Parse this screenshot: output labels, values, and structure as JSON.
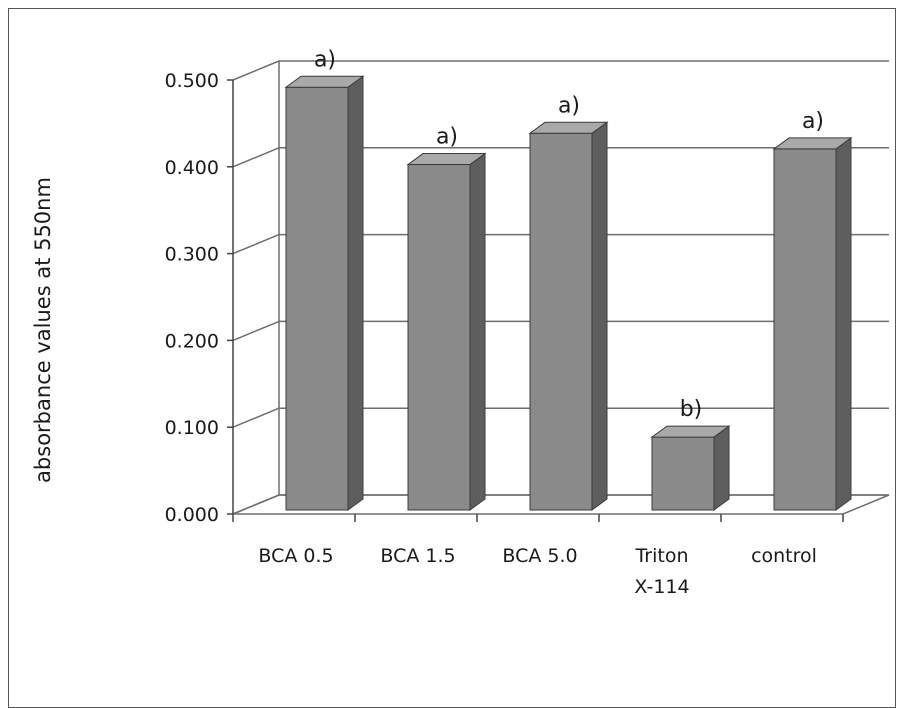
{
  "chart_data": {
    "type": "bar",
    "title": "",
    "xlabel": "",
    "ylabel": "absorbance  values at 550nm",
    "categories": [
      "BCA 0.5",
      "BCA 1.5",
      "BCA 5.0",
      "Triton X-114",
      "control"
    ],
    "category_lines": [
      [
        "BCA 0.5"
      ],
      [
        "BCA 1.5"
      ],
      [
        "BCA 5.0"
      ],
      [
        "Triton",
        "X-114"
      ],
      [
        "control"
      ]
    ],
    "values": [
      0.487,
      0.398,
      0.434,
      0.084,
      0.416
    ],
    "annotations": [
      "a)",
      "a)",
      "a)",
      "b)",
      "a)"
    ],
    "ylim": [
      0,
      0.5
    ],
    "yticks": [
      "0.000",
      "0.100",
      "0.200",
      "0.300",
      "0.400",
      "0.500"
    ],
    "grid": true,
    "style": "3d-column",
    "colors": {
      "bar_front": "#8a8a8a",
      "bar_side": "#5e5e5e",
      "bar_top": "#a9a9a9",
      "grid": "#6e6e6e",
      "axis": "#444444"
    }
  }
}
